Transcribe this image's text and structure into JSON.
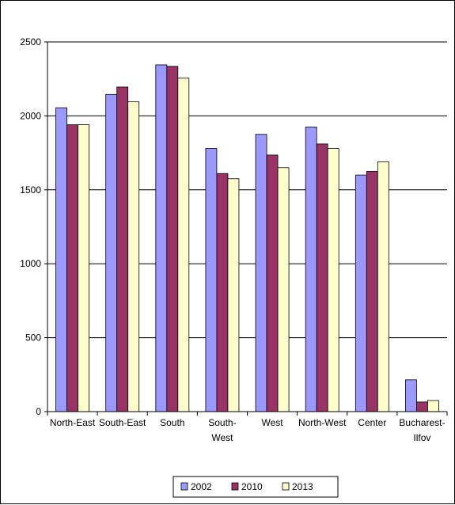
{
  "chart_data": {
    "type": "bar",
    "categories": [
      [
        "North-East"
      ],
      [
        "South-East"
      ],
      [
        "South"
      ],
      [
        "South-",
        "West"
      ],
      [
        "West"
      ],
      [
        "North-West"
      ],
      [
        "Center"
      ],
      [
        "Bucharest-",
        "Ilfov"
      ]
    ],
    "series": [
      {
        "name": "2002",
        "color": "#9999ff",
        "values": [
          2055,
          2145,
          2345,
          1780,
          1875,
          1925,
          1600,
          215
        ]
      },
      {
        "name": "2010",
        "color": "#993366",
        "values": [
          1940,
          2195,
          2335,
          1610,
          1735,
          1810,
          1625,
          65
        ]
      },
      {
        "name": "2013",
        "color": "#ffffcc",
        "values": [
          1940,
          2095,
          2255,
          1575,
          1650,
          1780,
          1690,
          75
        ]
      }
    ],
    "y_ticks": [
      "0",
      "500",
      "1000",
      "1500",
      "2000",
      "2500"
    ],
    "ylim": [
      0,
      2500
    ],
    "grid": true,
    "legend": "bottom"
  }
}
